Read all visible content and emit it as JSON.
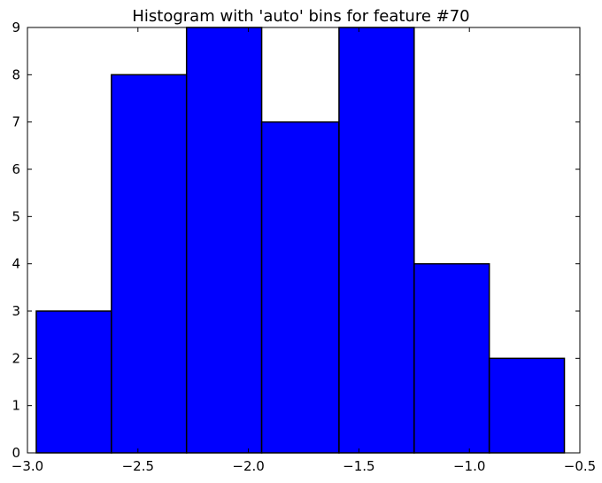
{
  "chart_data": {
    "type": "bar",
    "title": "Histogram with 'auto' bins for feature #70",
    "xlabel": "",
    "ylabel": "",
    "xlim": [
      -3.0,
      -0.5
    ],
    "ylim": [
      0,
      9
    ],
    "x_ticks": [
      -3.0,
      -2.5,
      -2.0,
      -1.5,
      -1.0,
      -0.5
    ],
    "x_tick_labels": [
      "−3.0",
      "−2.5",
      "−2.0",
      "−1.5",
      "−1.0",
      "−0.5"
    ],
    "y_ticks": [
      0,
      1,
      2,
      3,
      4,
      5,
      6,
      7,
      8,
      9
    ],
    "y_tick_labels": [
      "0",
      "1",
      "2",
      "3",
      "4",
      "5",
      "6",
      "7",
      "8",
      "9"
    ],
    "bin_edges": [
      -2.96,
      -2.62,
      -2.28,
      -1.94,
      -1.59,
      -1.25,
      -0.91,
      -0.57
    ],
    "values": [
      3,
      8,
      9,
      7,
      9,
      4,
      2
    ],
    "bar_color": "#0000ff",
    "edge_color": "#000000",
    "grid": false
  }
}
